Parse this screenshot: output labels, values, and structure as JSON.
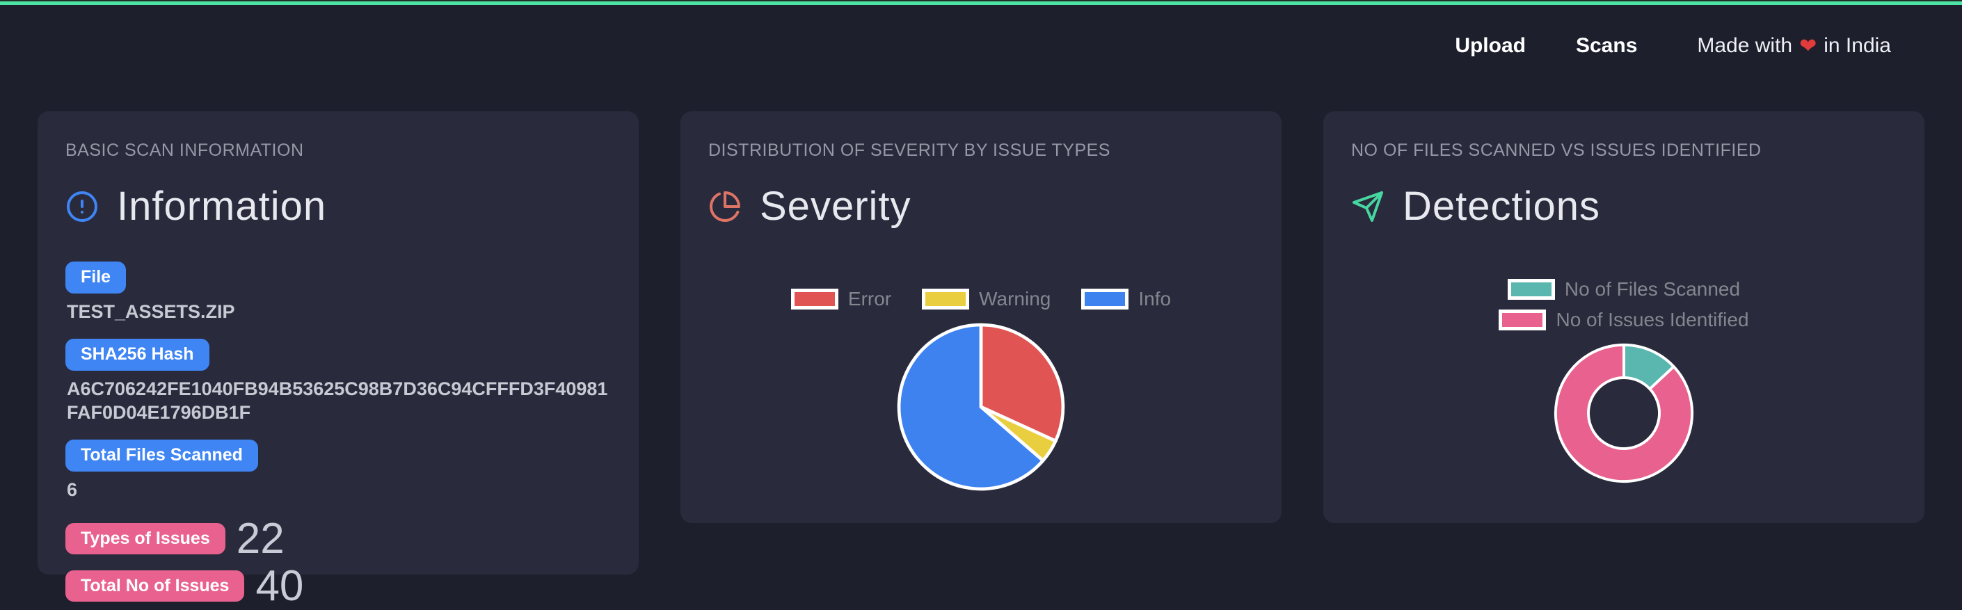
{
  "nav": {
    "links": [
      {
        "label": "Upload"
      },
      {
        "label": "Scans"
      }
    ],
    "tagline_prefix": "Made with",
    "tagline_heart": "❤",
    "tagline_suffix": "in India"
  },
  "cards": [
    {
      "eyebrow": "BASIC SCAN INFORMATION",
      "title": "Information",
      "icon": "alert-circle-icon",
      "fields": [
        {
          "badge": "File",
          "color": "blue",
          "value": "TEST_ASSETS.ZIP"
        },
        {
          "badge": "SHA256 Hash",
          "color": "blue",
          "value": "A6C706242FE1040FB94B53625C98B7D36C94CFFFD3F40981FAF0D04E1796DB1F"
        },
        {
          "badge": "Total Files Scanned",
          "color": "blue",
          "value": "6"
        },
        {
          "badge": "Types of Issues",
          "color": "pink",
          "value": "22"
        },
        {
          "badge": "Total No of Issues",
          "color": "pink",
          "value": "40"
        }
      ]
    },
    {
      "eyebrow": "DISTRIBUTION OF SEVERITY BY ISSUE TYPES",
      "title": "Severity",
      "icon": "pie-chart-icon"
    },
    {
      "eyebrow": "NO OF FILES SCANNED VS ISSUES IDENTIFIED",
      "title": "Detections",
      "icon": "send-icon"
    }
  ],
  "chart_data": [
    {
      "name": "severity-pie",
      "type": "pie",
      "title": "Distribution of severity by issue types",
      "labels": [
        "Error",
        "Warning",
        "Info"
      ],
      "values": [
        7,
        1,
        14
      ],
      "colors": [
        "#e05453",
        "#e9ce3f",
        "#3e82f0"
      ],
      "border_color": "#ffffff",
      "legend_position": "top",
      "cutout": 0
    },
    {
      "name": "detections-doughnut",
      "type": "doughnut",
      "title": "No of files scanned vs issues identified",
      "labels": [
        "No of Files Scanned",
        "No of Issues Identified"
      ],
      "values": [
        6,
        40
      ],
      "colors": [
        "#5ab7af",
        "#e9628f"
      ],
      "border_color": "#ffffff",
      "legend_position": "top",
      "cutout": 0.52
    }
  ],
  "colors": {
    "accent_green": "#4de3a5",
    "page_bg": "#1e1f2c",
    "card_bg": "#292a3c",
    "eyebrow": "#9699a6",
    "title": "#e8e9ef",
    "badge_blue": "#3f85f4",
    "badge_pink": "#e9628f",
    "value_text": "#c7c9d3",
    "legend_label": "#84868f",
    "nav_text": "#ffffff",
    "heart_red": "#e23b3b",
    "icon_info": "#3f85f4",
    "icon_pie": "#dd7466",
    "icon_send": "#46d6a0"
  }
}
